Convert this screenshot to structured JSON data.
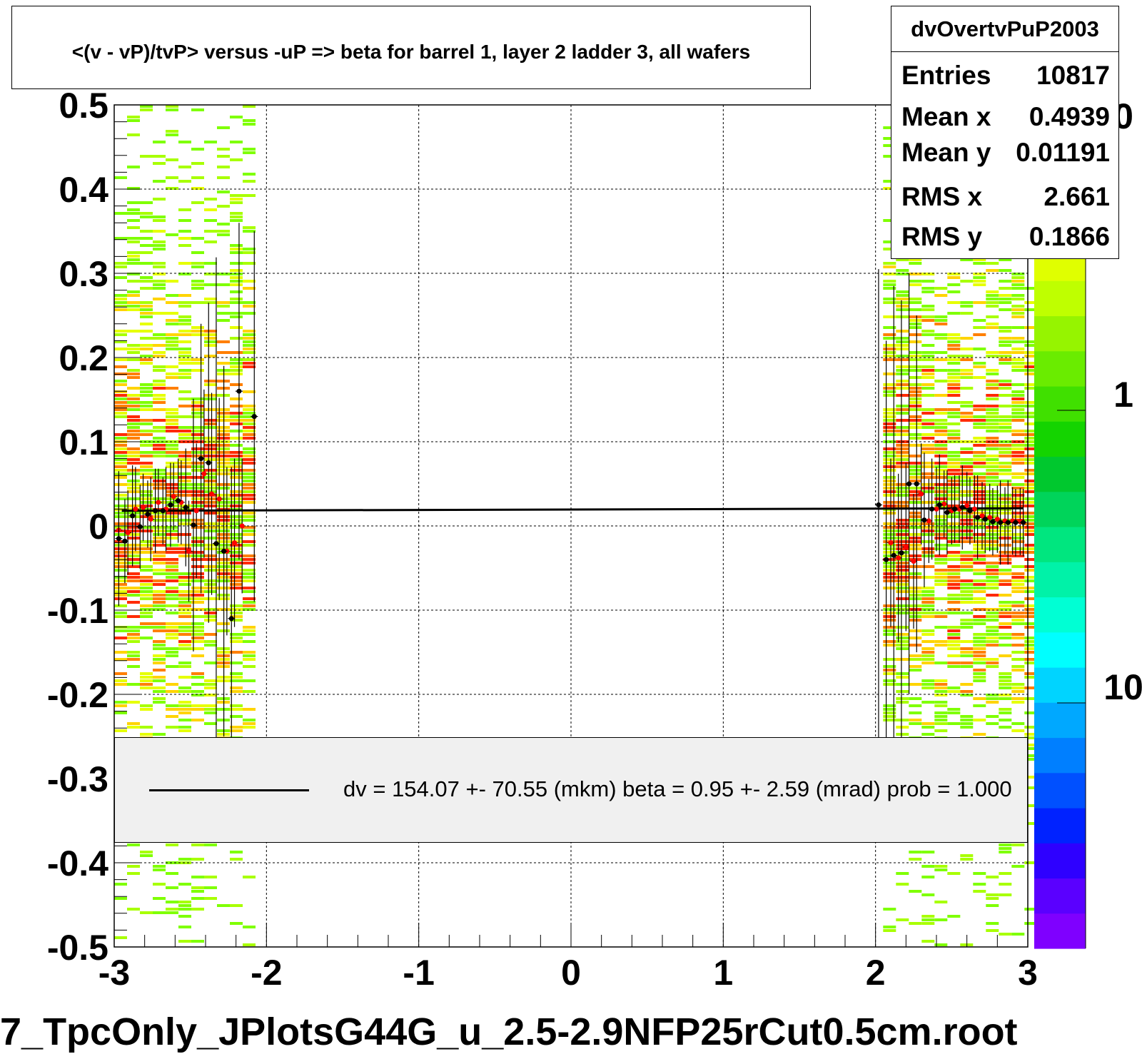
{
  "title": "<(v - vP)/tvP> versus  -uP => beta for barrel 1, layer 2 ladder 3, all wafers",
  "file_label": "7_TpcOnly_JPlotsG44G_u_2.5-2.9NFP25rCut0.5cm.root",
  "stats": {
    "name": "dvOvertvPuP2003",
    "rows": [
      {
        "key": "Entries",
        "value": "10817"
      },
      {
        "key": "Mean x",
        "value": "0.4939"
      },
      {
        "key": "Mean y",
        "value": "0.01191"
      },
      {
        "key": "RMS x",
        "value": "2.661"
      },
      {
        "key": "RMS y",
        "value": "0.1866"
      }
    ]
  },
  "legend": {
    "text": "dv =  154.07 +- 70.55 (mkm) beta =    0.95 +-  2.59 (mrad) prob = 1.000"
  },
  "palette": {
    "labels": [
      "0",
      "1",
      "10"
    ],
    "colors": [
      "#7f00ff",
      "#5a00ff",
      "#2e00ff",
      "#0022ff",
      "#0050ff",
      "#007fff",
      "#00a8ff",
      "#00d4ff",
      "#00ffff",
      "#00ffd4",
      "#00f2a8",
      "#00e67f",
      "#00d45a",
      "#00c82e",
      "#14d400",
      "#40e000",
      "#6aec00",
      "#96f400",
      "#bfff00",
      "#e0ff00",
      "#ffff00",
      "#ffe600",
      "#ffa500",
      "#ff7f00"
    ]
  },
  "chart_data": {
    "type": "heatmap",
    "xlim": [
      -3,
      3
    ],
    "ylim": [
      -0.5,
      0.5
    ],
    "xticks": [
      -3,
      -2,
      -1,
      0,
      1,
      2,
      3
    ],
    "yticks": [
      -0.5,
      -0.4,
      -0.3,
      -0.2,
      -0.1,
      0,
      0.1,
      0.2,
      0.3,
      0.4,
      0.5
    ],
    "xtick_labels": [
      "-3",
      "-2",
      "-1",
      "0",
      "1",
      "2",
      "3"
    ],
    "ytick_labels": [
      "-0.5",
      "-0.4",
      "-0.3",
      "-0.2",
      "-0.1",
      "0",
      "0.1",
      "0.2",
      "0.3",
      "0.4",
      "0.5"
    ],
    "grid": true,
    "density_regions": [
      {
        "x_range": [
          -3,
          -2.1
        ],
        "y_center": 0.02,
        "y_sigma": 0.19
      },
      {
        "x_range": [
          2.05,
          3
        ],
        "y_center": 0.02,
        "y_sigma": 0.19
      }
    ],
    "fit_line": {
      "x": [
        -2.95,
        2.97
      ],
      "y": [
        0.018,
        0.021
      ]
    },
    "profile_black": {
      "x": [
        -2.97,
        -2.93,
        -2.88,
        -2.83,
        -2.78,
        -2.73,
        -2.68,
        -2.63,
        -2.58,
        -2.53,
        -2.48,
        -2.43,
        -2.38,
        -2.33,
        -2.28,
        -2.23,
        -2.18,
        -2.08,
        2.02,
        2.07,
        2.12,
        2.17,
        2.22,
        2.27,
        2.32,
        2.37,
        2.42,
        2.47,
        2.52,
        2.57,
        2.62,
        2.67,
        2.72,
        2.77,
        2.82,
        2.87,
        2.92,
        2.97
      ],
      "y": [
        -0.015,
        -0.018,
        0.012,
        -0.001,
        0.014,
        0.018,
        0.018,
        0.025,
        0.03,
        0.022,
        0.001,
        0.08,
        0.075,
        -0.021,
        -0.03,
        -0.11,
        0.16,
        0.13,
        0.025,
        -0.04,
        -0.035,
        -0.032,
        0.05,
        0.05,
        0.007,
        0.02,
        0.025,
        0.016,
        0.02,
        0.022,
        0.018,
        0.01,
        0.008,
        0.005,
        0.004,
        0.004,
        0.004,
        0.004
      ],
      "err": [
        0.08,
        0.05,
        0.06,
        0.05,
        0.04,
        0.05,
        0.04,
        0.05,
        0.05,
        0.07,
        0.15,
        0.16,
        0.19,
        0.34,
        0.22,
        0.18,
        0.2,
        0.22,
        0.28,
        0.26,
        0.32,
        0.3,
        0.25,
        0.2,
        0.08,
        0.06,
        0.06,
        0.05,
        0.04,
        0.05,
        0.04,
        0.05,
        0.04,
        0.04,
        0.05,
        0.05,
        0.04,
        0.04
      ]
    },
    "profile_red": {
      "x": [
        -2.97,
        -2.91,
        -2.86,
        -2.81,
        -2.76,
        -2.71,
        -2.66,
        -2.61,
        -2.56,
        -2.51,
        -2.46,
        -2.41,
        -2.36,
        -2.31,
        -2.26,
        -2.21,
        -2.16,
        2.1,
        2.15,
        2.2,
        2.25,
        2.3,
        2.35,
        2.4,
        2.45,
        2.5,
        2.55,
        2.6,
        2.65,
        2.7,
        2.75,
        2.8,
        2.85,
        2.9,
        2.95
      ],
      "y": [
        -0.005,
        -0.008,
        0.02,
        0.022,
        0.008,
        0.028,
        0.02,
        0.035,
        0.028,
        -0.03,
        0.018,
        0.062,
        0.038,
        0.032,
        -0.03,
        -0.02,
        0.0,
        -0.02,
        -0.038,
        -0.025,
        -0.042,
        0.038,
        0.006,
        0.02,
        0.026,
        0.018,
        0.02,
        0.024,
        0.02,
        0.012,
        0.01,
        0.008,
        0.006,
        0.006,
        0.005
      ],
      "err": [
        0.06,
        0.05,
        0.05,
        0.04,
        0.05,
        0.04,
        0.05,
        0.04,
        0.05,
        0.06,
        0.08,
        0.1,
        0.12,
        0.12,
        0.1,
        0.1,
        0.08,
        0.1,
        0.1,
        0.1,
        0.08,
        0.06,
        0.05,
        0.05,
        0.04,
        0.04,
        0.04,
        0.04,
        0.04,
        0.04,
        0.04,
        0.04,
        0.04,
        0.04,
        0.04
      ]
    }
  }
}
